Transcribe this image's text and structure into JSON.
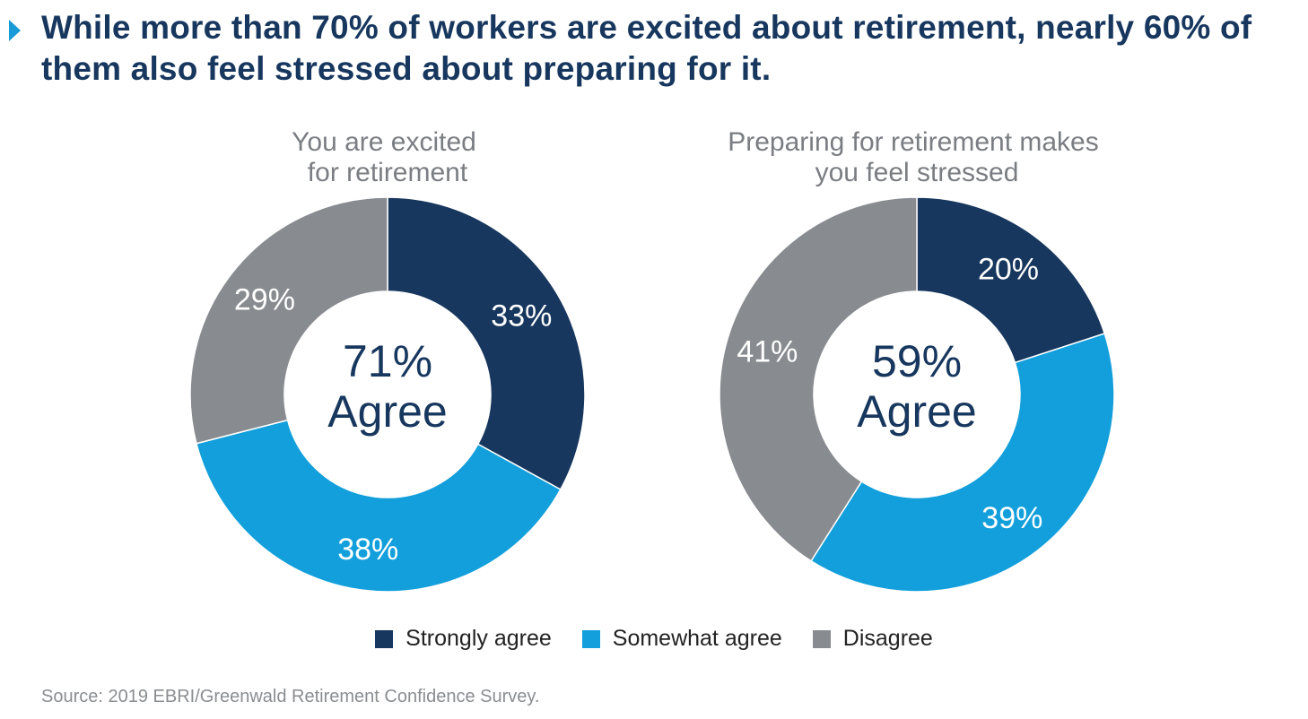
{
  "title": "While more than 70% of workers are excited about retirement, nearly 60% of them also feel stressed about preparing for it.",
  "colors": {
    "strongly_agree": "#17375e",
    "somewhat_agree": "#139fdb",
    "disagree": "#888b90"
  },
  "chart_data": [
    {
      "type": "pie",
      "title": "You are excited for retirement",
      "title_lines": [
        "You are excited",
        "for retirement"
      ],
      "center_value": "71%",
      "center_text": "Agree",
      "slices": [
        {
          "name": "Strongly agree",
          "value": 33,
          "label": "33%"
        },
        {
          "name": "Somewhat agree",
          "value": 38,
          "label": "38%"
        },
        {
          "name": "Disagree",
          "value": 29,
          "label": "29%"
        }
      ]
    },
    {
      "type": "pie",
      "title": "Preparing for retirement makes you feel stressed",
      "title_lines": [
        "Preparing for retirement makes",
        "you feel stressed"
      ],
      "center_value": "59%",
      "center_text": "Agree",
      "slices": [
        {
          "name": "Strongly agree",
          "value": 20,
          "label": "20%"
        },
        {
          "name": "Somewhat agree",
          "value": 39,
          "label": "39%"
        },
        {
          "name": "Disagree",
          "value": 41,
          "label": "41%"
        }
      ]
    }
  ],
  "legend": [
    {
      "label": "Strongly agree",
      "color": "#17375e"
    },
    {
      "label": "Somewhat agree",
      "color": "#139fdb"
    },
    {
      "label": "Disagree",
      "color": "#888b90"
    }
  ],
  "source": "Source: 2019 EBRI/Greenwald Retirement Confidence Survey."
}
